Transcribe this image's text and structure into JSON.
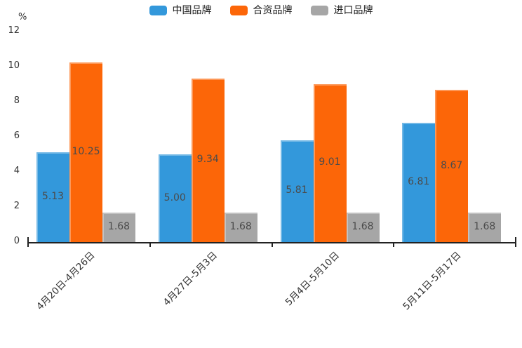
{
  "chart_data": {
    "type": "bar",
    "title": "",
    "ylabel": "%",
    "ylim": [
      0,
      12
    ],
    "yticks": [
      0,
      2,
      4,
      6,
      8,
      10,
      12
    ],
    "grid": false,
    "legend_position": "top-center",
    "categories": [
      "4月20日-4月26日",
      "4月27日-5月3日",
      "5月4日-5月10日",
      "5月11日-5月17日"
    ],
    "series": [
      {
        "name": "中国品牌",
        "color": "#3398DB",
        "values": [
          5.13,
          5.0,
          5.81,
          6.81
        ],
        "labels": [
          "5.13",
          "5.00",
          "5.81",
          "6.81"
        ]
      },
      {
        "name": "合资品牌",
        "color": "#FC6608",
        "values": [
          10.25,
          9.34,
          9.01,
          8.67
        ],
        "labels": [
          "10.25",
          "9.34",
          "9.01",
          "8.67"
        ]
      },
      {
        "name": "进口品牌",
        "color": "#A6A6A6",
        "values": [
          1.68,
          1.68,
          1.68,
          1.68
        ],
        "labels": [
          "1.68",
          "1.68",
          "1.68",
          "1.68"
        ]
      }
    ],
    "value_label_color": "#4b4b4b",
    "axis_color": "#222222",
    "tick_label_color": "#333333",
    "background": "#ffffff"
  }
}
